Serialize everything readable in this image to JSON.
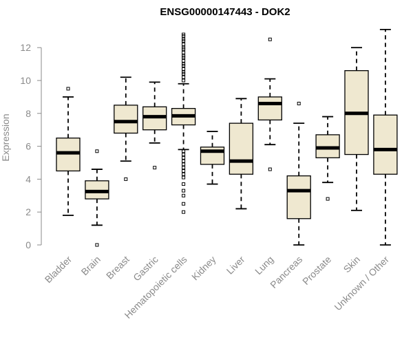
{
  "chart_data": {
    "type": "box",
    "title": "ENSG00000147443 - DOK2",
    "ylabel": "Expression",
    "xlabel": "",
    "ylim": [
      0,
      13.3
    ],
    "yticks": [
      0,
      2,
      4,
      6,
      8,
      10,
      12
    ],
    "box_fill": "#efe8d0",
    "box_stroke": "#000000",
    "categories": [
      "Bladder",
      "Brain",
      "Breast",
      "Gastric",
      "Hematopoietic cells",
      "Kidney",
      "Liver",
      "Lung",
      "Pancreas",
      "Prostate",
      "Skin",
      "Unknown / Other"
    ],
    "boxes": [
      {
        "name": "Bladder",
        "whisker_low": 1.8,
        "q1": 4.5,
        "median": 5.6,
        "q3": 6.5,
        "whisker_high": 9.0,
        "outliers": [
          9.5
        ]
      },
      {
        "name": "Brain",
        "whisker_low": 1.2,
        "q1": 2.8,
        "median": 3.25,
        "q3": 3.9,
        "whisker_high": 4.6,
        "outliers": [
          5.7,
          0.0
        ]
      },
      {
        "name": "Breast",
        "whisker_low": 5.1,
        "q1": 6.8,
        "median": 7.5,
        "q3": 8.5,
        "whisker_high": 10.2,
        "outliers": [
          4.0
        ]
      },
      {
        "name": "Gastric",
        "whisker_low": 6.2,
        "q1": 7.0,
        "median": 7.8,
        "q3": 8.4,
        "whisker_high": 9.9,
        "outliers": [
          4.7
        ]
      },
      {
        "name": "Hematopoietic cells",
        "whisker_low": 5.8,
        "q1": 7.3,
        "median": 7.85,
        "q3": 8.3,
        "whisker_high": 9.8,
        "outliers": [
          10.0,
          10.2,
          10.4,
          10.5,
          10.7,
          10.9,
          11.0,
          11.2,
          11.4,
          11.5,
          11.7,
          11.9,
          12.0,
          12.2,
          12.4,
          12.5,
          12.7,
          12.8,
          5.7,
          5.5,
          5.3,
          5.1,
          4.9,
          4.7,
          4.5,
          4.3,
          4.1,
          3.7,
          3.3,
          3.0,
          2.5,
          2.0
        ]
      },
      {
        "name": "Kidney",
        "whisker_low": 3.7,
        "q1": 4.9,
        "median": 5.7,
        "q3": 5.95,
        "whisker_high": 6.9,
        "outliers": []
      },
      {
        "name": "Liver",
        "whisker_low": 2.2,
        "q1": 4.3,
        "median": 5.1,
        "q3": 7.4,
        "whisker_high": 8.9,
        "outliers": []
      },
      {
        "name": "Lung",
        "whisker_low": 6.1,
        "q1": 7.6,
        "median": 8.6,
        "q3": 9.0,
        "whisker_high": 10.1,
        "outliers": [
          12.5,
          4.6
        ]
      },
      {
        "name": "Pancreas",
        "whisker_low": 0.0,
        "q1": 1.6,
        "median": 3.3,
        "q3": 4.2,
        "whisker_high": 7.4,
        "outliers": [
          8.6
        ]
      },
      {
        "name": "Prostate",
        "whisker_low": 3.8,
        "q1": 5.3,
        "median": 5.9,
        "q3": 6.7,
        "whisker_high": 7.8,
        "outliers": [
          2.8
        ]
      },
      {
        "name": "Skin",
        "whisker_low": 2.1,
        "q1": 5.5,
        "median": 8.0,
        "q3": 10.6,
        "whisker_high": 12.0,
        "outliers": []
      },
      {
        "name": "Unknown / Other",
        "whisker_low": 0.0,
        "q1": 4.3,
        "median": 5.8,
        "q3": 7.9,
        "whisker_high": 13.1,
        "outliers": []
      }
    ]
  }
}
